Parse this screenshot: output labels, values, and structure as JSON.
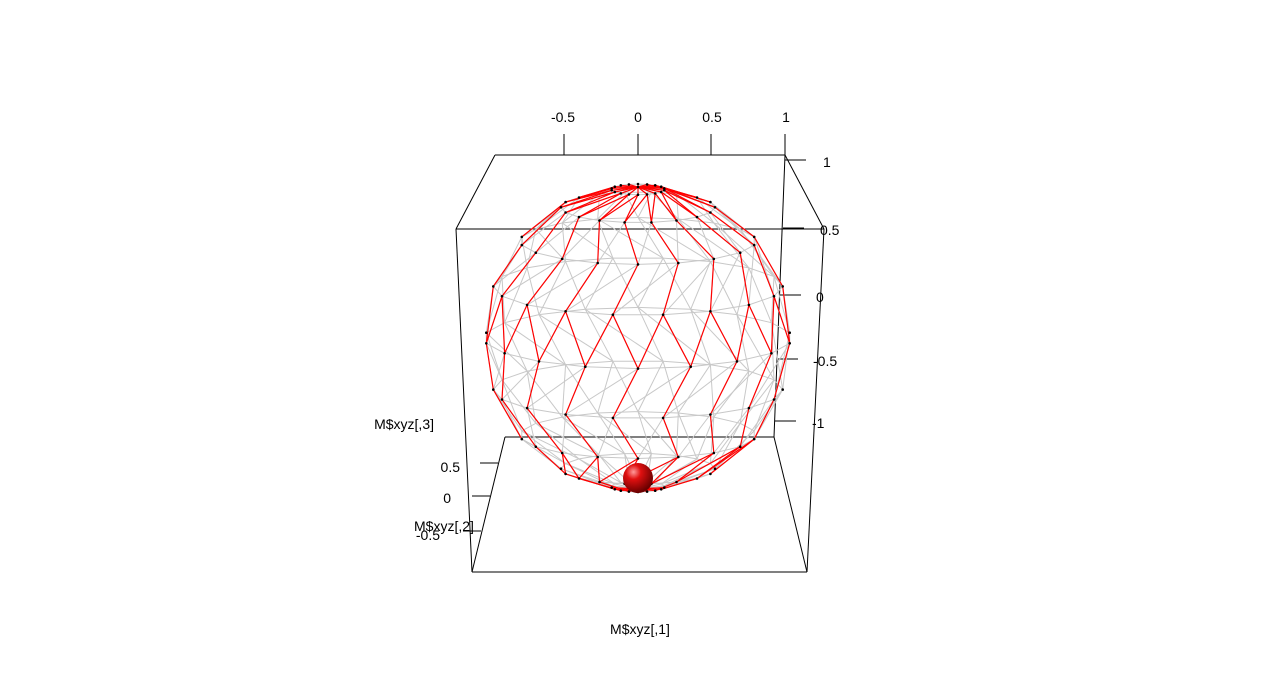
{
  "chart_data": {
    "type": "scatter",
    "title": "",
    "colors": {
      "box": "#000000",
      "mesh": "#c8c8c8",
      "path": "#ff0000",
      "points": "#000000",
      "marker": "#dd0000",
      "background": "#ffffff"
    },
    "axes": {
      "x": {
        "label": "M$xyz[,1]",
        "ticks": [
          "-0.5",
          "0",
          "0.5",
          "1"
        ],
        "range": [
          -1,
          1
        ]
      },
      "y": {
        "label": "M$xyz[,2]",
        "ticks": [
          "0.5",
          "0",
          "-0.5"
        ],
        "range": [
          -1,
          1
        ]
      },
      "z": {
        "label": "M$xyz[,3]",
        "ticks": [
          "1",
          "0.5",
          "0",
          "-0.5",
          "-1"
        ],
        "range": [
          -1,
          1
        ]
      }
    },
    "marker_point": {
      "x": 0,
      "y": 0,
      "z": -1
    },
    "sphere": {
      "rings": 9,
      "vertices_per_ring": 18,
      "radius": 1
    },
    "grid": false,
    "legend": "none"
  }
}
